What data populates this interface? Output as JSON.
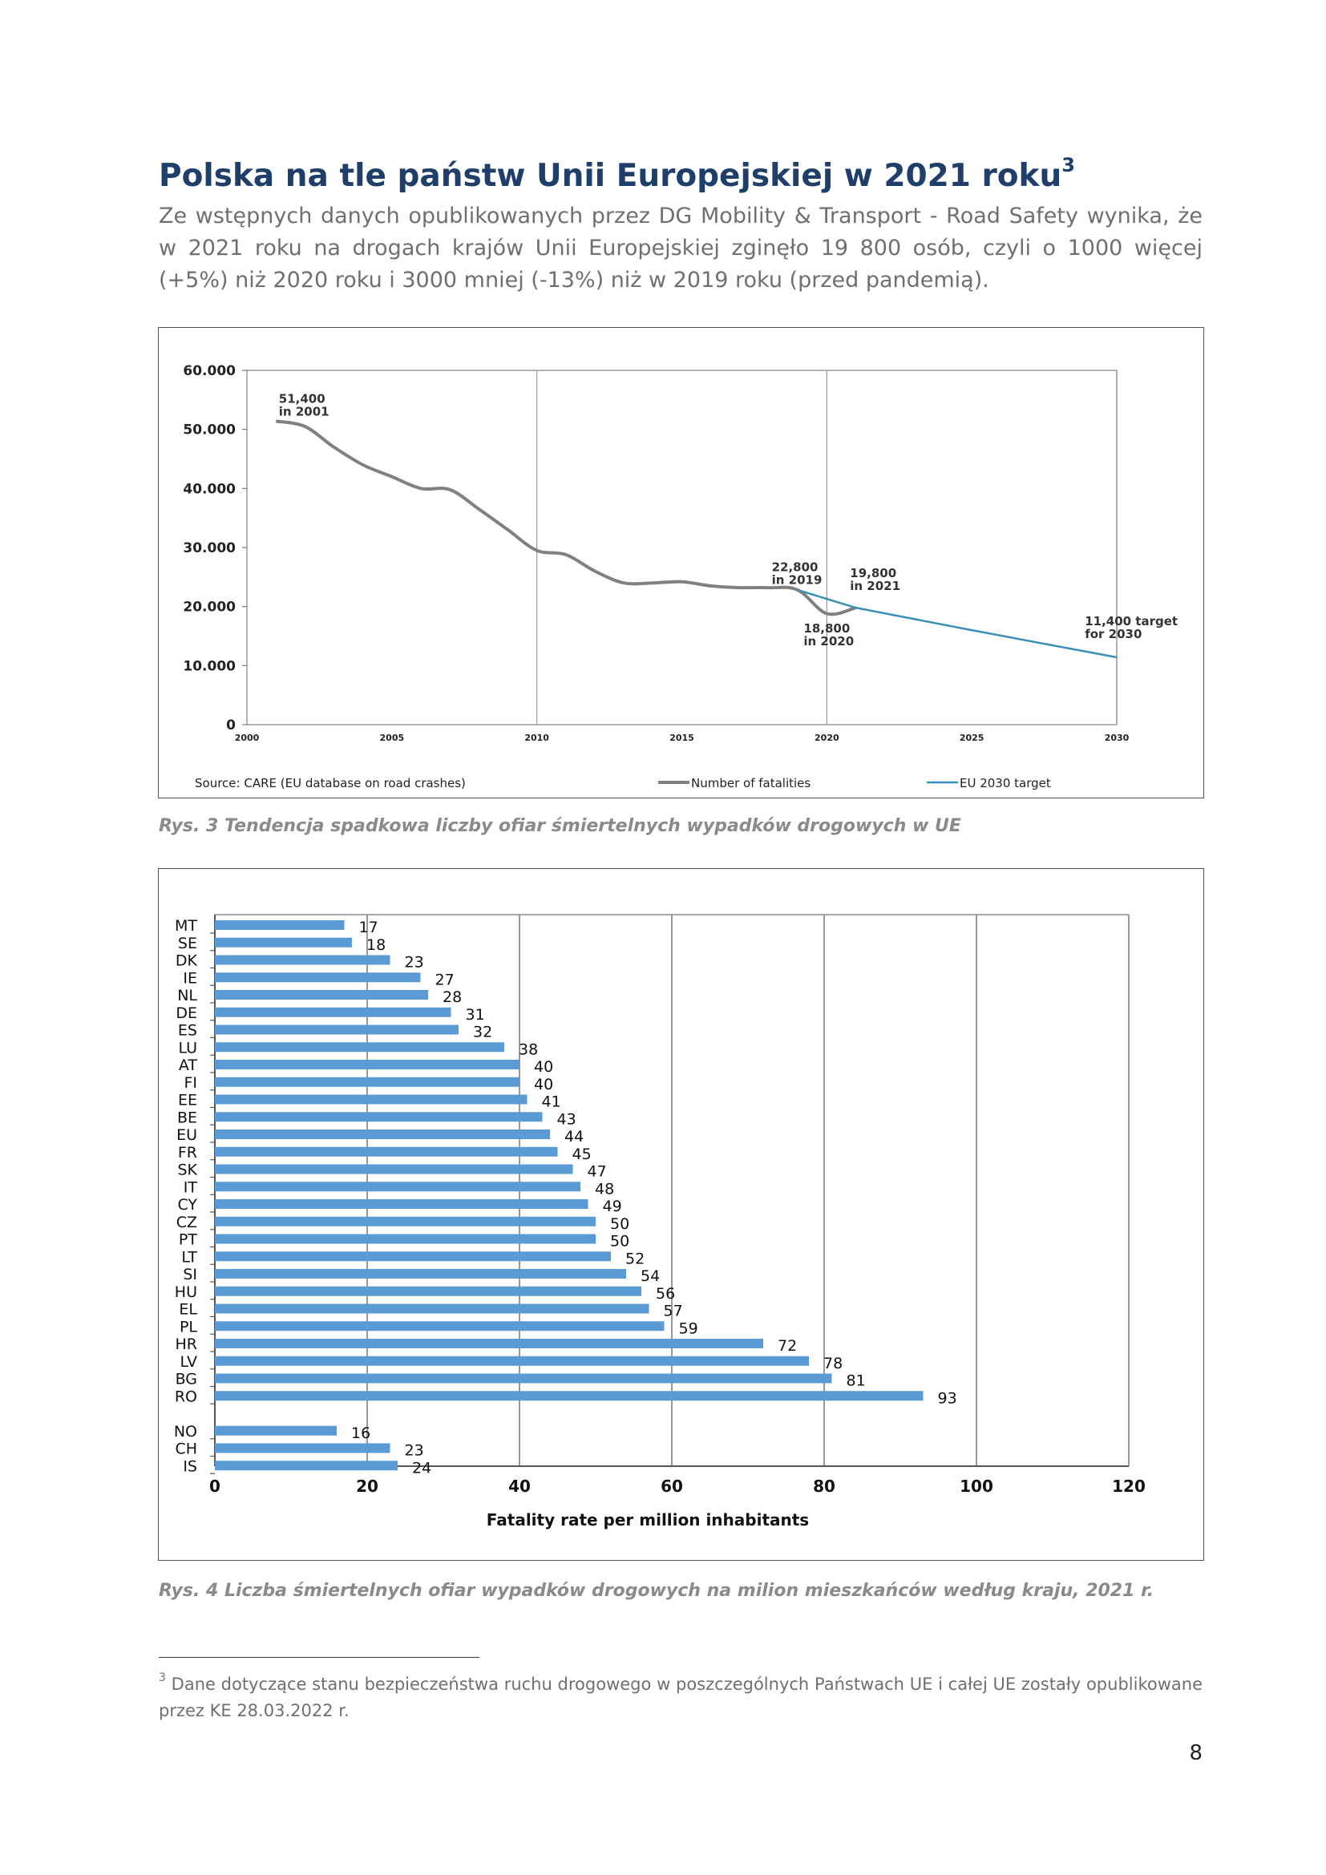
{
  "heading": {
    "text": "Polska na tle państw Unii Europejskiej w 2021 roku",
    "footnote_ref": "3"
  },
  "intro": "Ze wstępnych danych opublikowanych przez DG Mobility & Transport - Road Safety wynika, że w 2021 roku na drogach krajów Unii Europejskiej zginęło 19 800 osób, czyli o 1000  więcej (+5%) niż 2020 roku i 3000 mniej (-13%) niż w 2019 roku (przed pandemią).",
  "captions": {
    "fig1": "Rys. 3 Tendencja spadkowa liczby ofiar śmiertelnych wypadków drogowych w UE",
    "fig2": "Rys. 4 Liczba śmiertelnych ofiar wypadków drogowych na milion mieszkańców według kraju, 2021 r."
  },
  "footnote": {
    "marker": "3",
    "text": "Dane dotyczące stanu bezpieczeństwa ruchu drogowego w poszczególnych Państwach UE i całej UE zostały opublikowane przez KE 28.03.2022 r."
  },
  "page_number": "8",
  "colors": {
    "heading": "#1f3f6a",
    "fatalities_line": "#808080",
    "target_line": "#3a8fb7",
    "bars": "#5b9bd5"
  },
  "chart_data": [
    {
      "type": "line",
      "title": "",
      "xlabel": "",
      "ylabel": "",
      "xlim": [
        2000,
        2030
      ],
      "ylim": [
        0,
        60000
      ],
      "x_ticks": [
        "2000",
        "2005",
        "2010",
        "2015",
        "2020",
        "2025",
        "2030"
      ],
      "y_ticks": [
        "0",
        "10.000",
        "20.000",
        "30.000",
        "40.000",
        "50.000",
        "60.000"
      ],
      "vertical_gridlines": [
        2010,
        2020,
        2030
      ],
      "series": [
        {
          "name": "Number of fatalities",
          "color": "#808080",
          "x": [
            2001,
            2002,
            2003,
            2004,
            2005,
            2006,
            2007,
            2008,
            2009,
            2010,
            2011,
            2012,
            2013,
            2014,
            2015,
            2016,
            2017,
            2018,
            2019,
            2020,
            2021
          ],
          "y": [
            51400,
            50500,
            47000,
            44000,
            42000,
            40000,
            39800,
            36500,
            33000,
            29500,
            28800,
            26000,
            24000,
            24000,
            24200,
            23500,
            23200,
            23200,
            22800,
            18800,
            19800
          ]
        },
        {
          "name": "EU 2030 target",
          "color": "#3a8fb7",
          "x": [
            2019,
            2021,
            2025,
            2030
          ],
          "y": [
            22800,
            19800,
            16000,
            11400
          ]
        }
      ],
      "annotations": [
        {
          "lines": [
            "51,400",
            "in 2001"
          ],
          "x": 2001.1,
          "y": 54500
        },
        {
          "lines": [
            "22,800",
            "in 2019"
          ],
          "x": 2018.1,
          "y": 26000
        },
        {
          "lines": [
            "19,800",
            "in 2021"
          ],
          "x": 2020.8,
          "y": 25000
        },
        {
          "lines": [
            "18,800",
            "in 2020"
          ],
          "x": 2019.2,
          "y": 15600
        },
        {
          "lines": [
            "11,400 target",
            "for 2030"
          ],
          "x": 2028.9,
          "y": 16800
        }
      ],
      "source": "Source: CARE (EU database on road crashes)",
      "legend": {
        "placement": "bottom",
        "entries": [
          "Number of fatalities",
          "EU 2030 target"
        ]
      }
    },
    {
      "type": "bar",
      "orientation": "horizontal",
      "title": "",
      "xlabel": "Fatality rate per million inhabitants",
      "ylabel": "",
      "xlim": [
        0,
        120
      ],
      "x_ticks": [
        "0",
        "20",
        "40",
        "60",
        "80",
        "100",
        "120"
      ],
      "grid": true,
      "categories": [
        "MT",
        "SE",
        "DK",
        "IE",
        "NL",
        "DE",
        "ES",
        "LU",
        "AT",
        "FI",
        "EE",
        "BE",
        "EU",
        "FR",
        "SK",
        "IT",
        "CY",
        "CZ",
        "PT",
        "LT",
        "SI",
        "HU",
        "EL",
        "PL",
        "HR",
        "LV",
        "BG",
        "RO",
        "NO",
        "CH",
        "IS"
      ],
      "values": [
        17,
        18,
        23,
        27,
        28,
        31,
        32,
        38,
        40,
        40,
        41,
        43,
        44,
        45,
        47,
        48,
        49,
        50,
        50,
        52,
        54,
        56,
        57,
        59,
        72,
        78,
        81,
        93,
        16,
        23,
        24
      ],
      "value_labels": [
        "17",
        "18",
        "23",
        "27",
        "28",
        "31",
        "32",
        "38",
        "40",
        "40",
        "41",
        "43",
        "44",
        "45",
        "47",
        "48",
        "49",
        "50",
        "50",
        "52",
        "54",
        "56",
        "57",
        "59",
        "72",
        "78",
        "81",
        "93",
        "16",
        "23",
        "24"
      ],
      "group_gap_after": "RO"
    }
  ]
}
